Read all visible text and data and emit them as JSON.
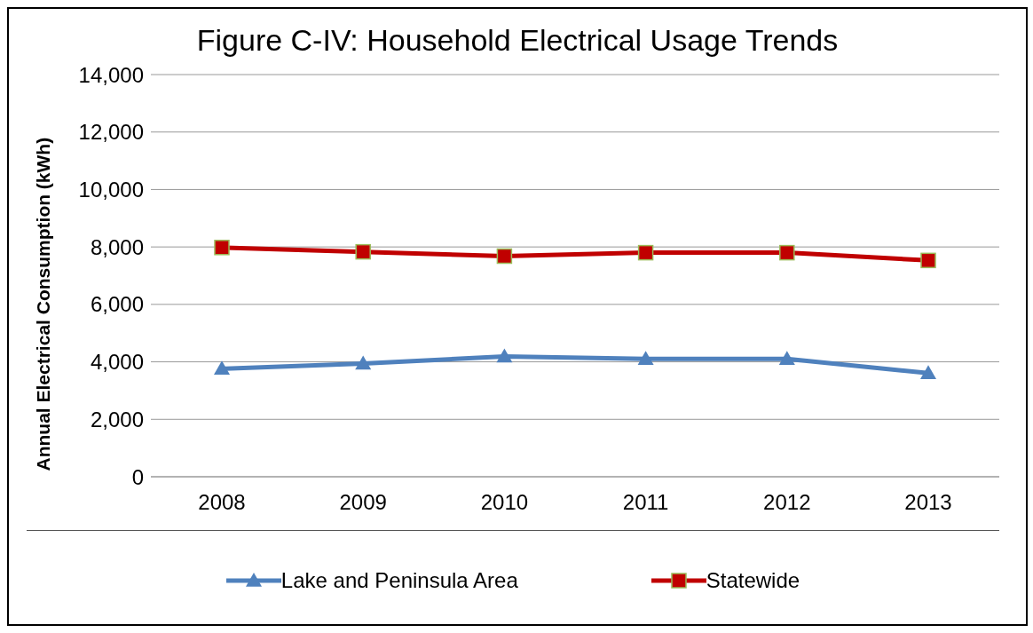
{
  "chart_data": {
    "type": "line",
    "title": "Figure C-IV: Household Electrical Usage Trends",
    "ylabel": "Annual Electrical Consumption (kWh)",
    "categories": [
      "2008",
      "2009",
      "2010",
      "2011",
      "2012",
      "2013"
    ],
    "series": [
      {
        "name": "Lake and Peninsula Area",
        "color": "#4f81bd",
        "marker": "triangle",
        "values": [
          3760,
          3940,
          4190,
          4100,
          4100,
          3610
        ]
      },
      {
        "name": "Statewide",
        "color": "#c00000",
        "marker": "square",
        "values": [
          7980,
          7830,
          7680,
          7800,
          7800,
          7530
        ]
      }
    ],
    "ylim": [
      0,
      14000
    ],
    "yticks": [
      0,
      {
        "value": 2000,
        "label": "2,000"
      },
      {
        "value": 4000,
        "label": "4,000"
      },
      {
        "value": 6000,
        "label": "6,000"
      },
      {
        "value": 8000,
        "label": "8,000"
      },
      {
        "value": 10000,
        "label": "10,000"
      },
      {
        "value": 12000,
        "label": "12,000"
      },
      {
        "value": 14000,
        "label": "14,000"
      }
    ],
    "grid": "y",
    "legend": "bottom",
    "line_style": "solid"
  }
}
